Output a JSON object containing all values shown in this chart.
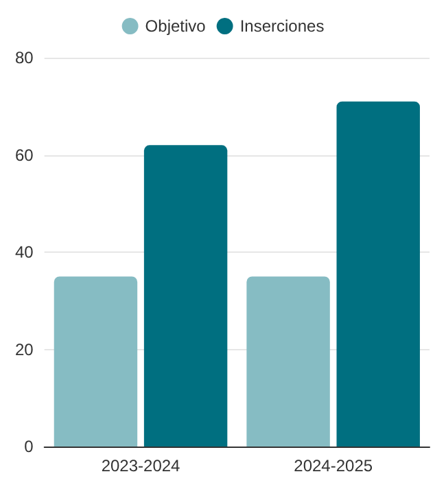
{
  "chart_data": {
    "type": "bar",
    "categories": [
      "2023-2024",
      "2024-2025"
    ],
    "series": [
      {
        "name": "Objetivo",
        "color": "#86bcc3",
        "values": [
          35,
          35
        ]
      },
      {
        "name": "Inserciones",
        "color": "#006f80",
        "values": [
          62,
          71
        ]
      }
    ],
    "ylim": [
      0,
      80
    ],
    "yticks": [
      0,
      20,
      40,
      60,
      80
    ],
    "grid": "y",
    "legend": "top"
  }
}
